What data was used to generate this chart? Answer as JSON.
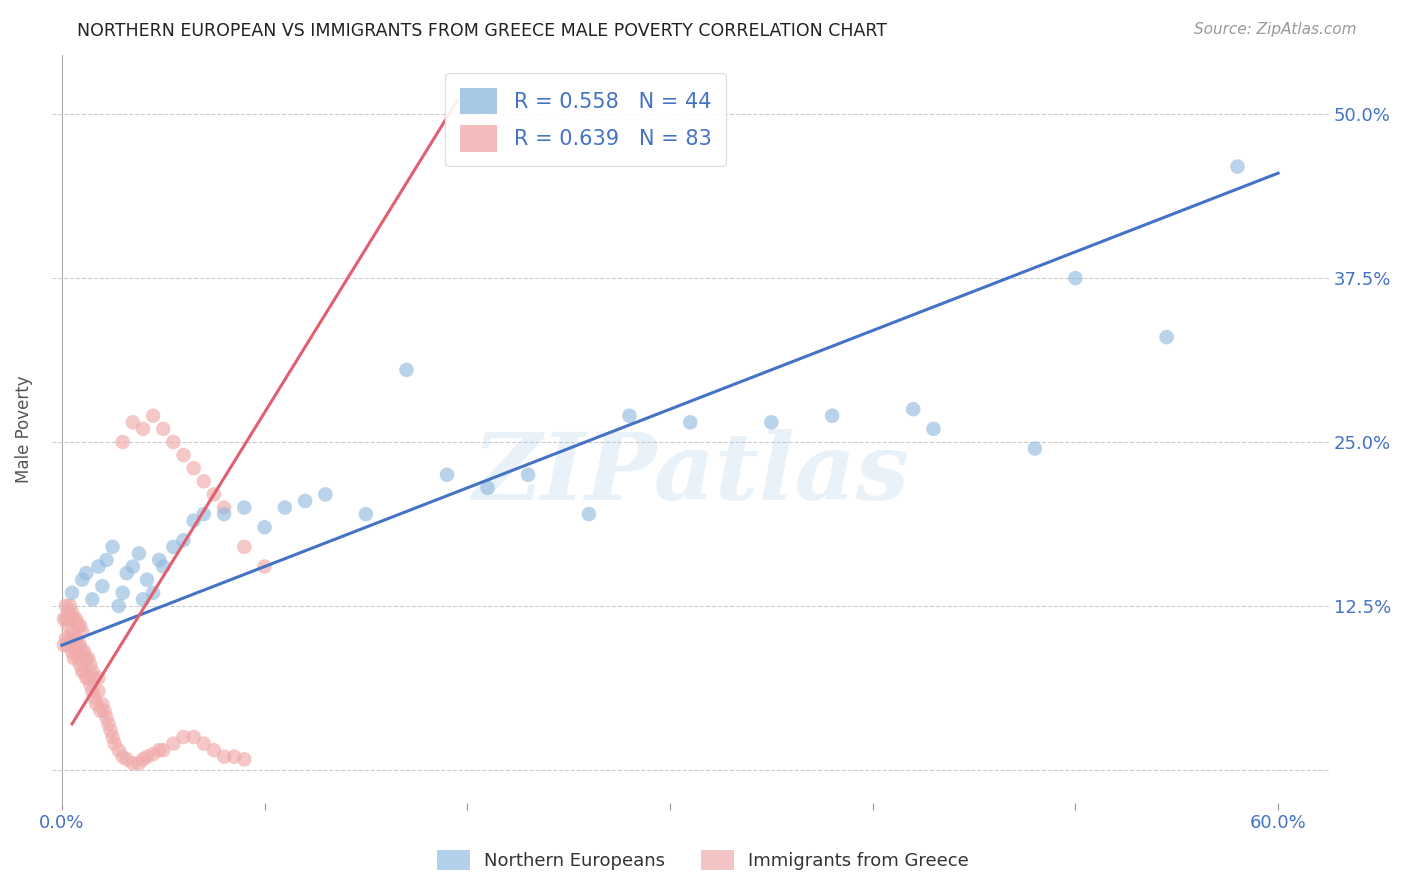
{
  "title": "NORTHERN EUROPEAN VS IMMIGRANTS FROM GREECE MALE POVERTY CORRELATION CHART",
  "source": "Source: ZipAtlas.com",
  "ylabel": "Male Poverty",
  "xlim": [
    -0.005,
    0.625
  ],
  "ylim": [
    -0.025,
    0.545
  ],
  "blue_R": 0.558,
  "blue_N": 44,
  "pink_R": 0.639,
  "pink_N": 83,
  "blue_color": "#92bce0",
  "pink_color": "#f0aaaa",
  "blue_line_color": "#4472c4",
  "pink_line_color": "#e06070",
  "watermark": "ZIPatlas",
  "blue_scatter_x": [
    0.005,
    0.01,
    0.012,
    0.015,
    0.018,
    0.02,
    0.022,
    0.025,
    0.028,
    0.03,
    0.032,
    0.035,
    0.038,
    0.04,
    0.042,
    0.045,
    0.048,
    0.05,
    0.055,
    0.06,
    0.065,
    0.07,
    0.08,
    0.09,
    0.1,
    0.11,
    0.12,
    0.13,
    0.15,
    0.17,
    0.19,
    0.21,
    0.23,
    0.26,
    0.28,
    0.31,
    0.35,
    0.38,
    0.42,
    0.43,
    0.48,
    0.5,
    0.545,
    0.58
  ],
  "blue_scatter_y": [
    0.135,
    0.145,
    0.15,
    0.13,
    0.155,
    0.14,
    0.16,
    0.17,
    0.125,
    0.135,
    0.15,
    0.155,
    0.165,
    0.13,
    0.145,
    0.135,
    0.16,
    0.155,
    0.17,
    0.175,
    0.19,
    0.195,
    0.195,
    0.2,
    0.185,
    0.2,
    0.205,
    0.21,
    0.195,
    0.305,
    0.225,
    0.215,
    0.225,
    0.195,
    0.27,
    0.265,
    0.265,
    0.27,
    0.275,
    0.26,
    0.245,
    0.375,
    0.33,
    0.46
  ],
  "pink_scatter_x": [
    0.001,
    0.001,
    0.002,
    0.002,
    0.002,
    0.003,
    0.003,
    0.003,
    0.004,
    0.004,
    0.004,
    0.005,
    0.005,
    0.005,
    0.006,
    0.006,
    0.006,
    0.007,
    0.007,
    0.007,
    0.008,
    0.008,
    0.008,
    0.009,
    0.009,
    0.009,
    0.01,
    0.01,
    0.01,
    0.011,
    0.011,
    0.012,
    0.012,
    0.013,
    0.013,
    0.014,
    0.014,
    0.015,
    0.015,
    0.016,
    0.016,
    0.017,
    0.018,
    0.018,
    0.019,
    0.02,
    0.021,
    0.022,
    0.023,
    0.024,
    0.025,
    0.026,
    0.028,
    0.03,
    0.032,
    0.035,
    0.038,
    0.04,
    0.042,
    0.045,
    0.048,
    0.05,
    0.055,
    0.06,
    0.065,
    0.07,
    0.075,
    0.08,
    0.085,
    0.09,
    0.03,
    0.035,
    0.04,
    0.045,
    0.05,
    0.055,
    0.06,
    0.065,
    0.07,
    0.075,
    0.08,
    0.09,
    0.1
  ],
  "pink_scatter_y": [
    0.095,
    0.115,
    0.1,
    0.115,
    0.125,
    0.095,
    0.11,
    0.12,
    0.1,
    0.115,
    0.125,
    0.09,
    0.105,
    0.12,
    0.085,
    0.1,
    0.115,
    0.09,
    0.1,
    0.115,
    0.085,
    0.095,
    0.11,
    0.08,
    0.095,
    0.11,
    0.075,
    0.09,
    0.105,
    0.075,
    0.09,
    0.07,
    0.085,
    0.07,
    0.085,
    0.065,
    0.08,
    0.06,
    0.075,
    0.055,
    0.07,
    0.05,
    0.06,
    0.07,
    0.045,
    0.05,
    0.045,
    0.04,
    0.035,
    0.03,
    0.025,
    0.02,
    0.015,
    0.01,
    0.008,
    0.005,
    0.005,
    0.008,
    0.01,
    0.012,
    0.015,
    0.015,
    0.02,
    0.025,
    0.025,
    0.02,
    0.015,
    0.01,
    0.01,
    0.008,
    0.25,
    0.265,
    0.26,
    0.27,
    0.26,
    0.25,
    0.24,
    0.23,
    0.22,
    0.21,
    0.2,
    0.17,
    0.155
  ],
  "blue_line_x": [
    0.0,
    0.6
  ],
  "blue_line_y": [
    0.095,
    0.455
  ],
  "pink_line_x": [
    0.005,
    0.195
  ],
  "pink_line_y": [
    0.035,
    0.51
  ],
  "x_tick_positions": [
    0.0,
    0.1,
    0.2,
    0.3,
    0.4,
    0.5,
    0.6
  ],
  "x_tick_labels": [
    "0.0%",
    "",
    "",
    "",
    "",
    "",
    "60.0%"
  ],
  "y_tick_positions": [
    0.0,
    0.125,
    0.25,
    0.375,
    0.5
  ],
  "y_tick_labels": [
    "",
    "12.5%",
    "25.0%",
    "37.5%",
    "50.0%"
  ]
}
